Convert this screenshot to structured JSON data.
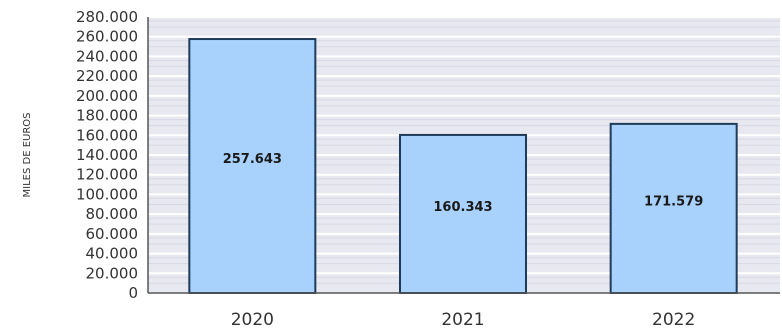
{
  "chart_data": {
    "type": "bar",
    "title": "",
    "xlabel": "",
    "ylabel": "MILES DE EUROS",
    "categories": [
      "2020",
      "2021",
      "2022"
    ],
    "values": [
      257643,
      160343,
      171579
    ],
    "data_labels": [
      "257.643",
      "160.343",
      "171.579"
    ],
    "ylim": [
      0,
      280000
    ],
    "ytick_step": 20000,
    "ytick_labels": [
      "0",
      "20.000",
      "40.000",
      "60.000",
      "80.000",
      "100.000",
      "120.000",
      "140.000",
      "160.000",
      "180.000",
      "200.000",
      "220.000",
      "240.000",
      "260.000",
      "280.000"
    ],
    "grid": true,
    "legend": "none",
    "colors": {
      "bar_fill": "#a8d2fb",
      "bar_stroke": "#1f3b5a",
      "plot_background": "#e8e8f0",
      "grid": "#ffffff",
      "axis": "#555555"
    }
  }
}
